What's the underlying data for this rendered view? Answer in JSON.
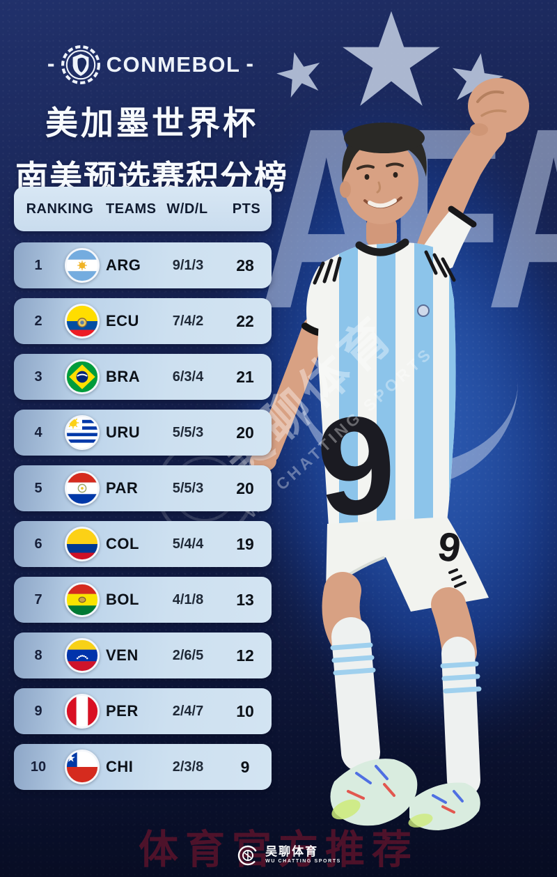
{
  "brand": {
    "dash_left": "-",
    "name": "CONMEBOL",
    "dash_right": "-"
  },
  "title": {
    "line1": "美加墨世界杯",
    "line2": "南美预选赛积分榜"
  },
  "standings": {
    "columns": [
      "RANKING",
      "TEAMS",
      "W/D/L",
      "PTS"
    ],
    "rows": [
      {
        "rank": "1",
        "team": "ARG",
        "wdl": "9/1/3",
        "pts": "28",
        "flag": "arg"
      },
      {
        "rank": "2",
        "team": "ECU",
        "wdl": "7/4/2",
        "pts": "22",
        "flag": "ecu"
      },
      {
        "rank": "3",
        "team": "BRA",
        "wdl": "6/3/4",
        "pts": "21",
        "flag": "bra"
      },
      {
        "rank": "4",
        "team": "URU",
        "wdl": "5/5/3",
        "pts": "20",
        "flag": "uru"
      },
      {
        "rank": "5",
        "team": "PAR",
        "wdl": "5/5/3",
        "pts": "20",
        "flag": "par"
      },
      {
        "rank": "6",
        "team": "COL",
        "wdl": "5/4/4",
        "pts": "19",
        "flag": "col"
      },
      {
        "rank": "7",
        "team": "BOL",
        "wdl": "4/1/8",
        "pts": "13",
        "flag": "bol"
      },
      {
        "rank": "8",
        "team": "VEN",
        "wdl": "2/6/5",
        "pts": "12",
        "flag": "ven"
      },
      {
        "rank": "9",
        "team": "PER",
        "wdl": "2/4/7",
        "pts": "10",
        "flag": "per"
      },
      {
        "rank": "10",
        "team": "CHI",
        "wdl": "2/3/8",
        "pts": "9",
        "flag": "chi"
      }
    ]
  },
  "player": {
    "jersey_number": "9",
    "shorts_number": "9"
  },
  "background": {
    "afa_text": "AFA"
  },
  "watermarks": {
    "diagonal_cn": "吴聊体育",
    "diagonal_en": "WU CHATTING SPORTS",
    "footer_promo": "体育官方推荐",
    "footer_logo_cn": "吴聊体育",
    "footer_logo_en": "WU CHATTING SPORTS"
  },
  "colors": {
    "bg_navy": "#131c45",
    "bg_royal": "#24509f",
    "row_light": "#cde0f0",
    "row_dark_edge": "#8da6c7",
    "header_bg": "#d0e1f1",
    "text_dark": "#101b30",
    "star": "#b7c3da",
    "afa_watermark": "#b8c7e1",
    "promo_red": "#87162d",
    "jersey_stripe_blue": "#8cc4ea"
  },
  "chart_data": {
    "type": "table",
    "title": "美加墨世界杯 南美预选赛积分榜 (CONMEBOL)",
    "columns": [
      "RANKING",
      "TEAMS",
      "W/D/L",
      "PTS"
    ],
    "rows": [
      [
        "1",
        "ARG",
        "9/1/3",
        "28"
      ],
      [
        "2",
        "ECU",
        "7/4/2",
        "22"
      ],
      [
        "3",
        "BRA",
        "6/3/4",
        "21"
      ],
      [
        "4",
        "URU",
        "5/5/3",
        "20"
      ],
      [
        "5",
        "PAR",
        "5/5/3",
        "20"
      ],
      [
        "6",
        "COL",
        "5/4/4",
        "19"
      ],
      [
        "7",
        "BOL",
        "4/1/8",
        "13"
      ],
      [
        "8",
        "VEN",
        "2/6/5",
        "12"
      ],
      [
        "9",
        "PER",
        "2/4/7",
        "10"
      ],
      [
        "10",
        "CHI",
        "2/3/8",
        "9"
      ]
    ]
  }
}
